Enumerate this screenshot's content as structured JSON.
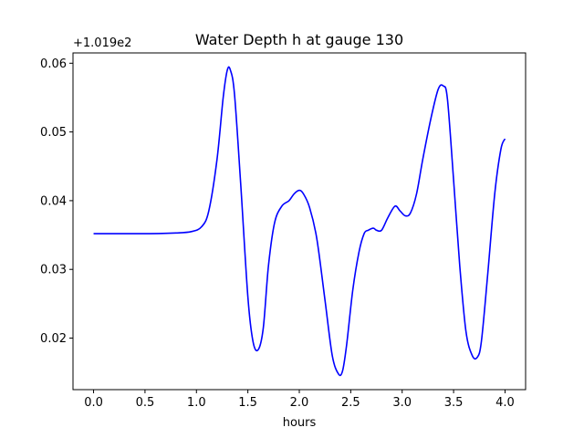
{
  "chart_data": {
    "type": "line",
    "title": "Water Depth h at gauge 130",
    "xlabel": "hours",
    "ylabel": "",
    "y_offset_label": "+1.019e2",
    "xlim": [
      -0.2,
      4.2
    ],
    "ylim": [
      0.0125,
      0.0615
    ],
    "x_ticks": [
      0.0,
      0.5,
      1.0,
      1.5,
      2.0,
      2.5,
      3.0,
      3.5,
      4.0
    ],
    "x_tick_labels": [
      "0.0",
      "0.5",
      "1.0",
      "1.5",
      "2.0",
      "2.5",
      "3.0",
      "3.5",
      "4.0"
    ],
    "y_ticks": [
      0.02,
      0.03,
      0.04,
      0.05,
      0.06
    ],
    "y_tick_labels": [
      "0.02",
      "0.03",
      "0.04",
      "0.05",
      "0.06"
    ],
    "grid": false,
    "series": [
      {
        "color": "#0000ff",
        "x": [
          0.0,
          0.5,
          0.8,
          0.95,
          1.05,
          1.12,
          1.2,
          1.26,
          1.3,
          1.33,
          1.37,
          1.43,
          1.5,
          1.55,
          1.6,
          1.65,
          1.7,
          1.76,
          1.83,
          1.9,
          1.95,
          2.0,
          2.04,
          2.1,
          2.17,
          2.25,
          2.32,
          2.38,
          2.42,
          2.46,
          2.52,
          2.58,
          2.63,
          2.67,
          2.72,
          2.75,
          2.8,
          2.86,
          2.93,
          2.98,
          3.03,
          3.08,
          3.14,
          3.2,
          3.28,
          3.35,
          3.4,
          3.44,
          3.5,
          3.56,
          3.62,
          3.68,
          3.73,
          3.77,
          3.83,
          3.9,
          3.96,
          4.0
        ],
        "y": [
          0.0352,
          0.0352,
          0.0353,
          0.0355,
          0.0362,
          0.0385,
          0.046,
          0.055,
          0.059,
          0.059,
          0.0555,
          0.0425,
          0.026,
          0.0195,
          0.0183,
          0.0215,
          0.0305,
          0.0368,
          0.0392,
          0.04,
          0.041,
          0.0415,
          0.041,
          0.039,
          0.0345,
          0.0255,
          0.0175,
          0.0148,
          0.0152,
          0.019,
          0.027,
          0.0325,
          0.0352,
          0.0357,
          0.036,
          0.0357,
          0.0357,
          0.0375,
          0.0392,
          0.0385,
          0.0378,
          0.0382,
          0.041,
          0.046,
          0.052,
          0.0562,
          0.0567,
          0.0548,
          0.043,
          0.0305,
          0.021,
          0.0175,
          0.0172,
          0.0195,
          0.029,
          0.041,
          0.0475,
          0.049
        ]
      }
    ]
  }
}
